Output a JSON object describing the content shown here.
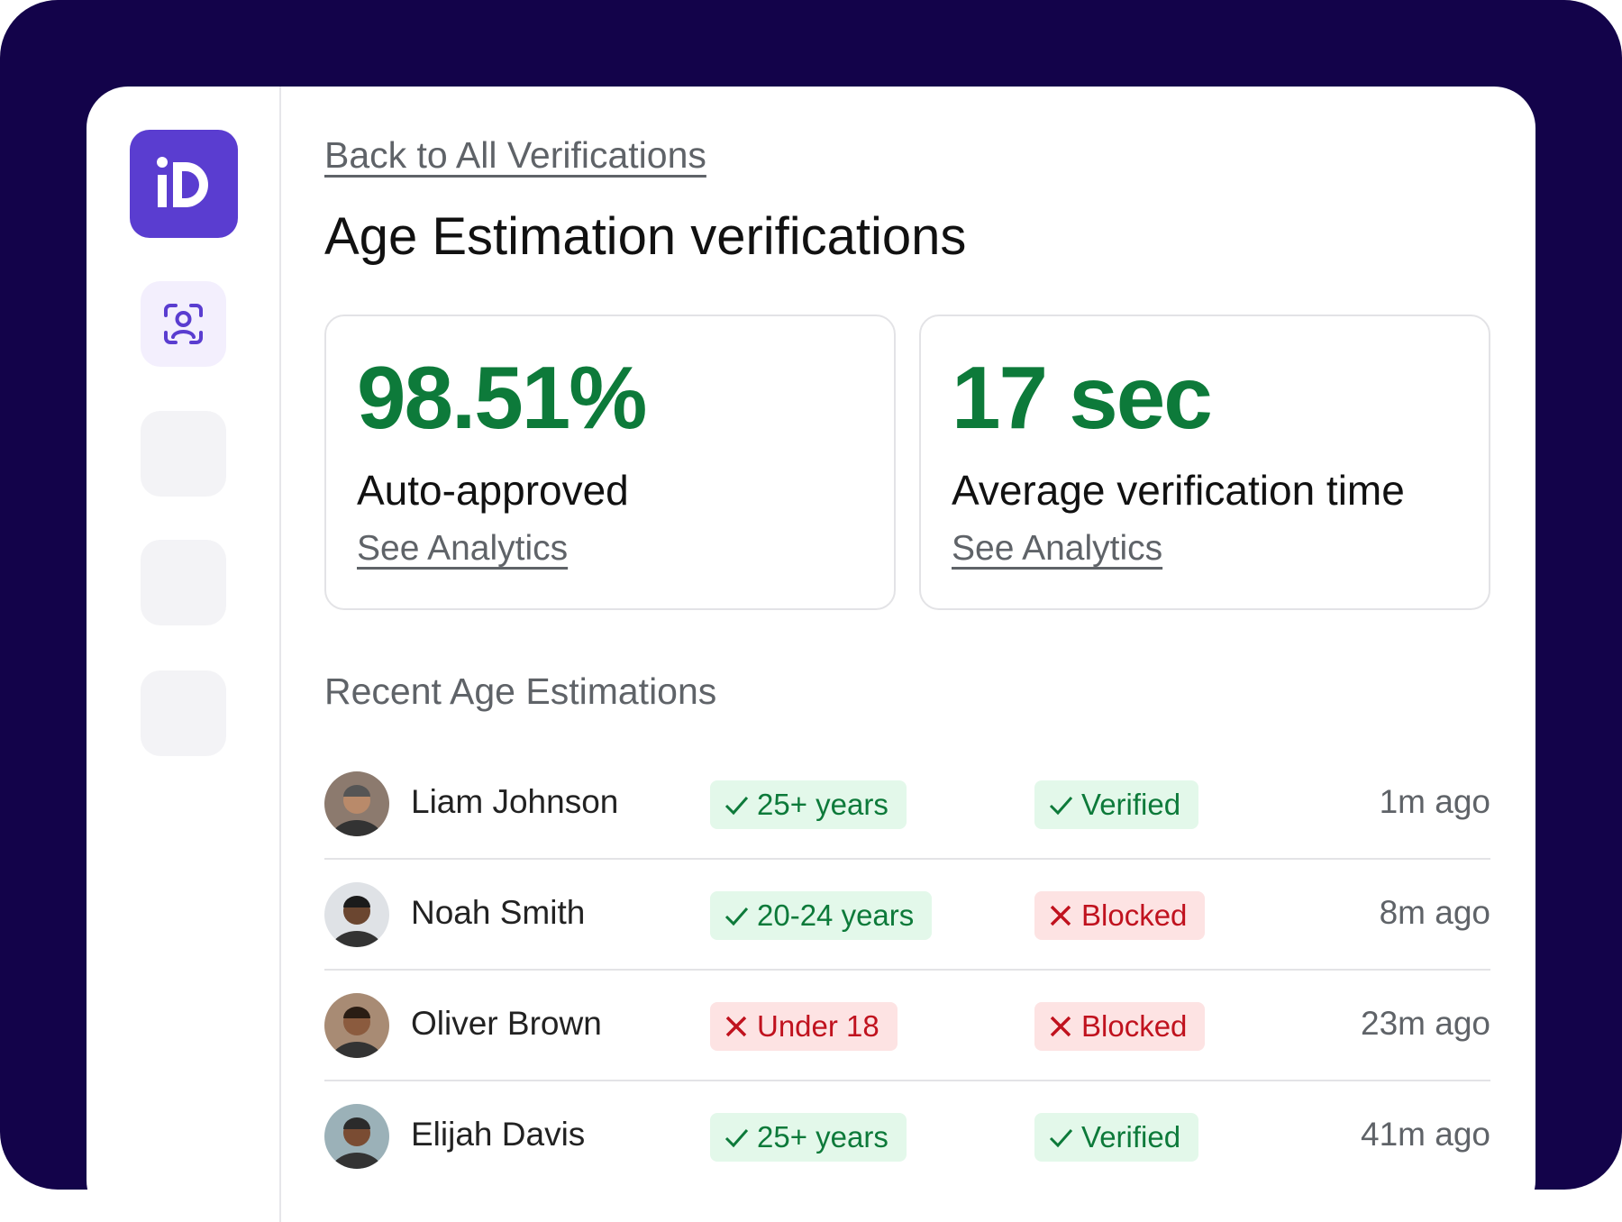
{
  "header": {
    "back_link": "Back to All Verifications",
    "title": "Age Estimation verifications"
  },
  "stats": [
    {
      "value": "98.51%",
      "label": "Auto-approved",
      "link": "See Analytics"
    },
    {
      "value": "17 sec",
      "label": "Average verification time",
      "link": "See Analytics"
    }
  ],
  "section_title": "Recent Age Estimations",
  "rows": [
    {
      "name": "Liam Johnson",
      "age": "25+ years",
      "status": "Verified",
      "time": "1m ago"
    },
    {
      "name": "Noah Smith",
      "age": "20-24 years",
      "status": "Blocked",
      "time": "8m ago"
    },
    {
      "name": "Oliver Brown",
      "age": "Under 18",
      "status": "Blocked",
      "time": "23m ago"
    },
    {
      "name": "Elijah Davis",
      "age": "25+ years",
      "status": "Verified",
      "time": "41m ago"
    }
  ]
}
